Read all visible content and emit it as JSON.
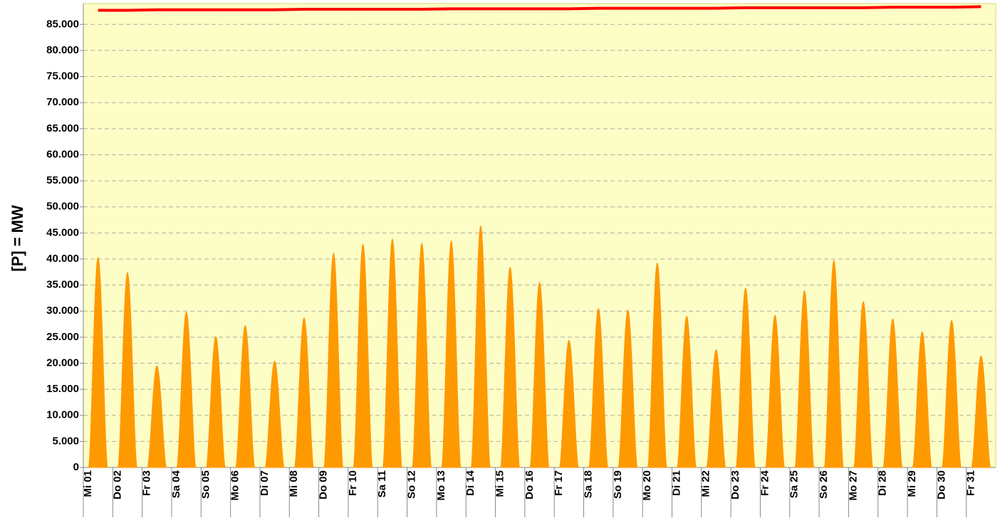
{
  "chart_data": {
    "type": "area",
    "y_label": "[P] = MW",
    "categories": [
      "Mi 01",
      "Do 02",
      "Fr 03",
      "Sa 04",
      "So 05",
      "Mo 06",
      "Di 07",
      "Mi 08",
      "Do 09",
      "Fr 10",
      "Sa 11",
      "So 12",
      "Mo 13",
      "Di 14",
      "Mi 15",
      "Do 16",
      "Fr 17",
      "Sa 18",
      "So 19",
      "Mo 20",
      "Di 21",
      "Mi 22",
      "Do 23",
      "Fr 24",
      "Sa 25",
      "So 26",
      "Mo 27",
      "Di 28",
      "Mi 29",
      "Do 30",
      "Fr 31"
    ],
    "series": [
      {
        "color": "#ff9900",
        "values": [
          40300,
          37400,
          19500,
          29800,
          25100,
          27200,
          20400,
          28700,
          41100,
          42800,
          43800,
          43000,
          43400,
          46300,
          38400,
          35500,
          24400,
          30500,
          30200,
          39200,
          29000,
          22600,
          34400,
          29200,
          33900,
          39700,
          31800,
          28500,
          26000,
          28200,
          21400
        ]
      },
      {
        "color": "#ff0000",
        "values": [
          87700,
          87700,
          87800,
          87800,
          87800,
          87800,
          87800,
          87900,
          87900,
          87900,
          87900,
          87900,
          88000,
          88000,
          88000,
          88000,
          88000,
          88100,
          88100,
          88100,
          88100,
          88100,
          88200,
          88200,
          88200,
          88200,
          88200,
          88300,
          88300,
          88300,
          88400
        ]
      }
    ],
    "ylim": [
      0,
      89000
    ],
    "yticks": [
      0,
      {
        "value": 5000,
        "label": "5.000"
      },
      {
        "value": 10000,
        "label": "10.000"
      },
      {
        "value": 15000,
        "label": "15.000"
      },
      {
        "value": 20000,
        "label": "20.000"
      },
      {
        "value": 25000,
        "label": "25.000"
      },
      {
        "value": 30000,
        "label": "30.000"
      },
      {
        "value": 35000,
        "label": "35.000"
      },
      {
        "value": 40000,
        "label": "40.000"
      },
      {
        "value": 45000,
        "label": "45.000"
      },
      {
        "value": 50000,
        "label": "50.000"
      },
      {
        "value": 55000,
        "label": "55.000"
      },
      {
        "value": 60000,
        "label": "60.000"
      },
      {
        "value": 65000,
        "label": "65.000"
      },
      {
        "value": 70000,
        "label": "70.000"
      },
      {
        "value": 75000,
        "label": "75.000"
      },
      {
        "value": 80000,
        "label": "80.000"
      },
      {
        "value": 85000,
        "label": "85.000"
      }
    ],
    "grid": true
  }
}
